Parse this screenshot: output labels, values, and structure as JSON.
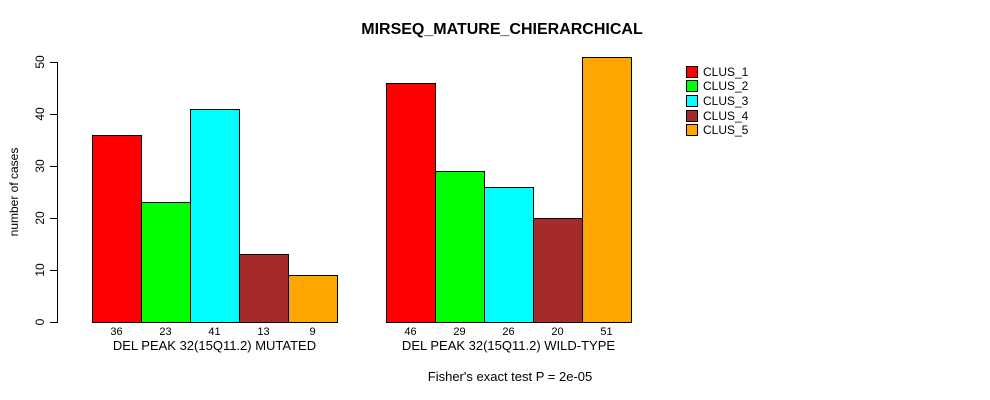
{
  "chart_data": {
    "type": "bar",
    "title": "MIRSEQ_MATURE_CHIERARCHICAL",
    "ylabel": "number of cases",
    "xlabel": "",
    "ylim": [
      0,
      50
    ],
    "yticks": [
      0,
      10,
      20,
      30,
      40,
      50
    ],
    "grid": false,
    "legend_position": "right",
    "categories": [
      "DEL PEAK 32(15Q11.2) MUTATED",
      "DEL PEAK 32(15Q11.2) WILD-TYPE"
    ],
    "series": [
      {
        "name": "CLUS_1",
        "color": "#FF0000",
        "values": [
          36,
          46
        ]
      },
      {
        "name": "CLUS_2",
        "color": "#00FF00",
        "values": [
          23,
          29
        ]
      },
      {
        "name": "CLUS_3",
        "color": "#00FFFF",
        "values": [
          41,
          26
        ]
      },
      {
        "name": "CLUS_4",
        "color": "#A52A2A",
        "values": [
          13,
          20
        ]
      },
      {
        "name": "CLUS_5",
        "color": "#FFA500",
        "values": [
          9,
          51
        ]
      }
    ],
    "bar_value_labels": [
      [
        36,
        23,
        41,
        13,
        9
      ],
      [
        46,
        29,
        26,
        20,
        51
      ]
    ],
    "annotation": "Fisher's exact test P = 2e-05"
  }
}
